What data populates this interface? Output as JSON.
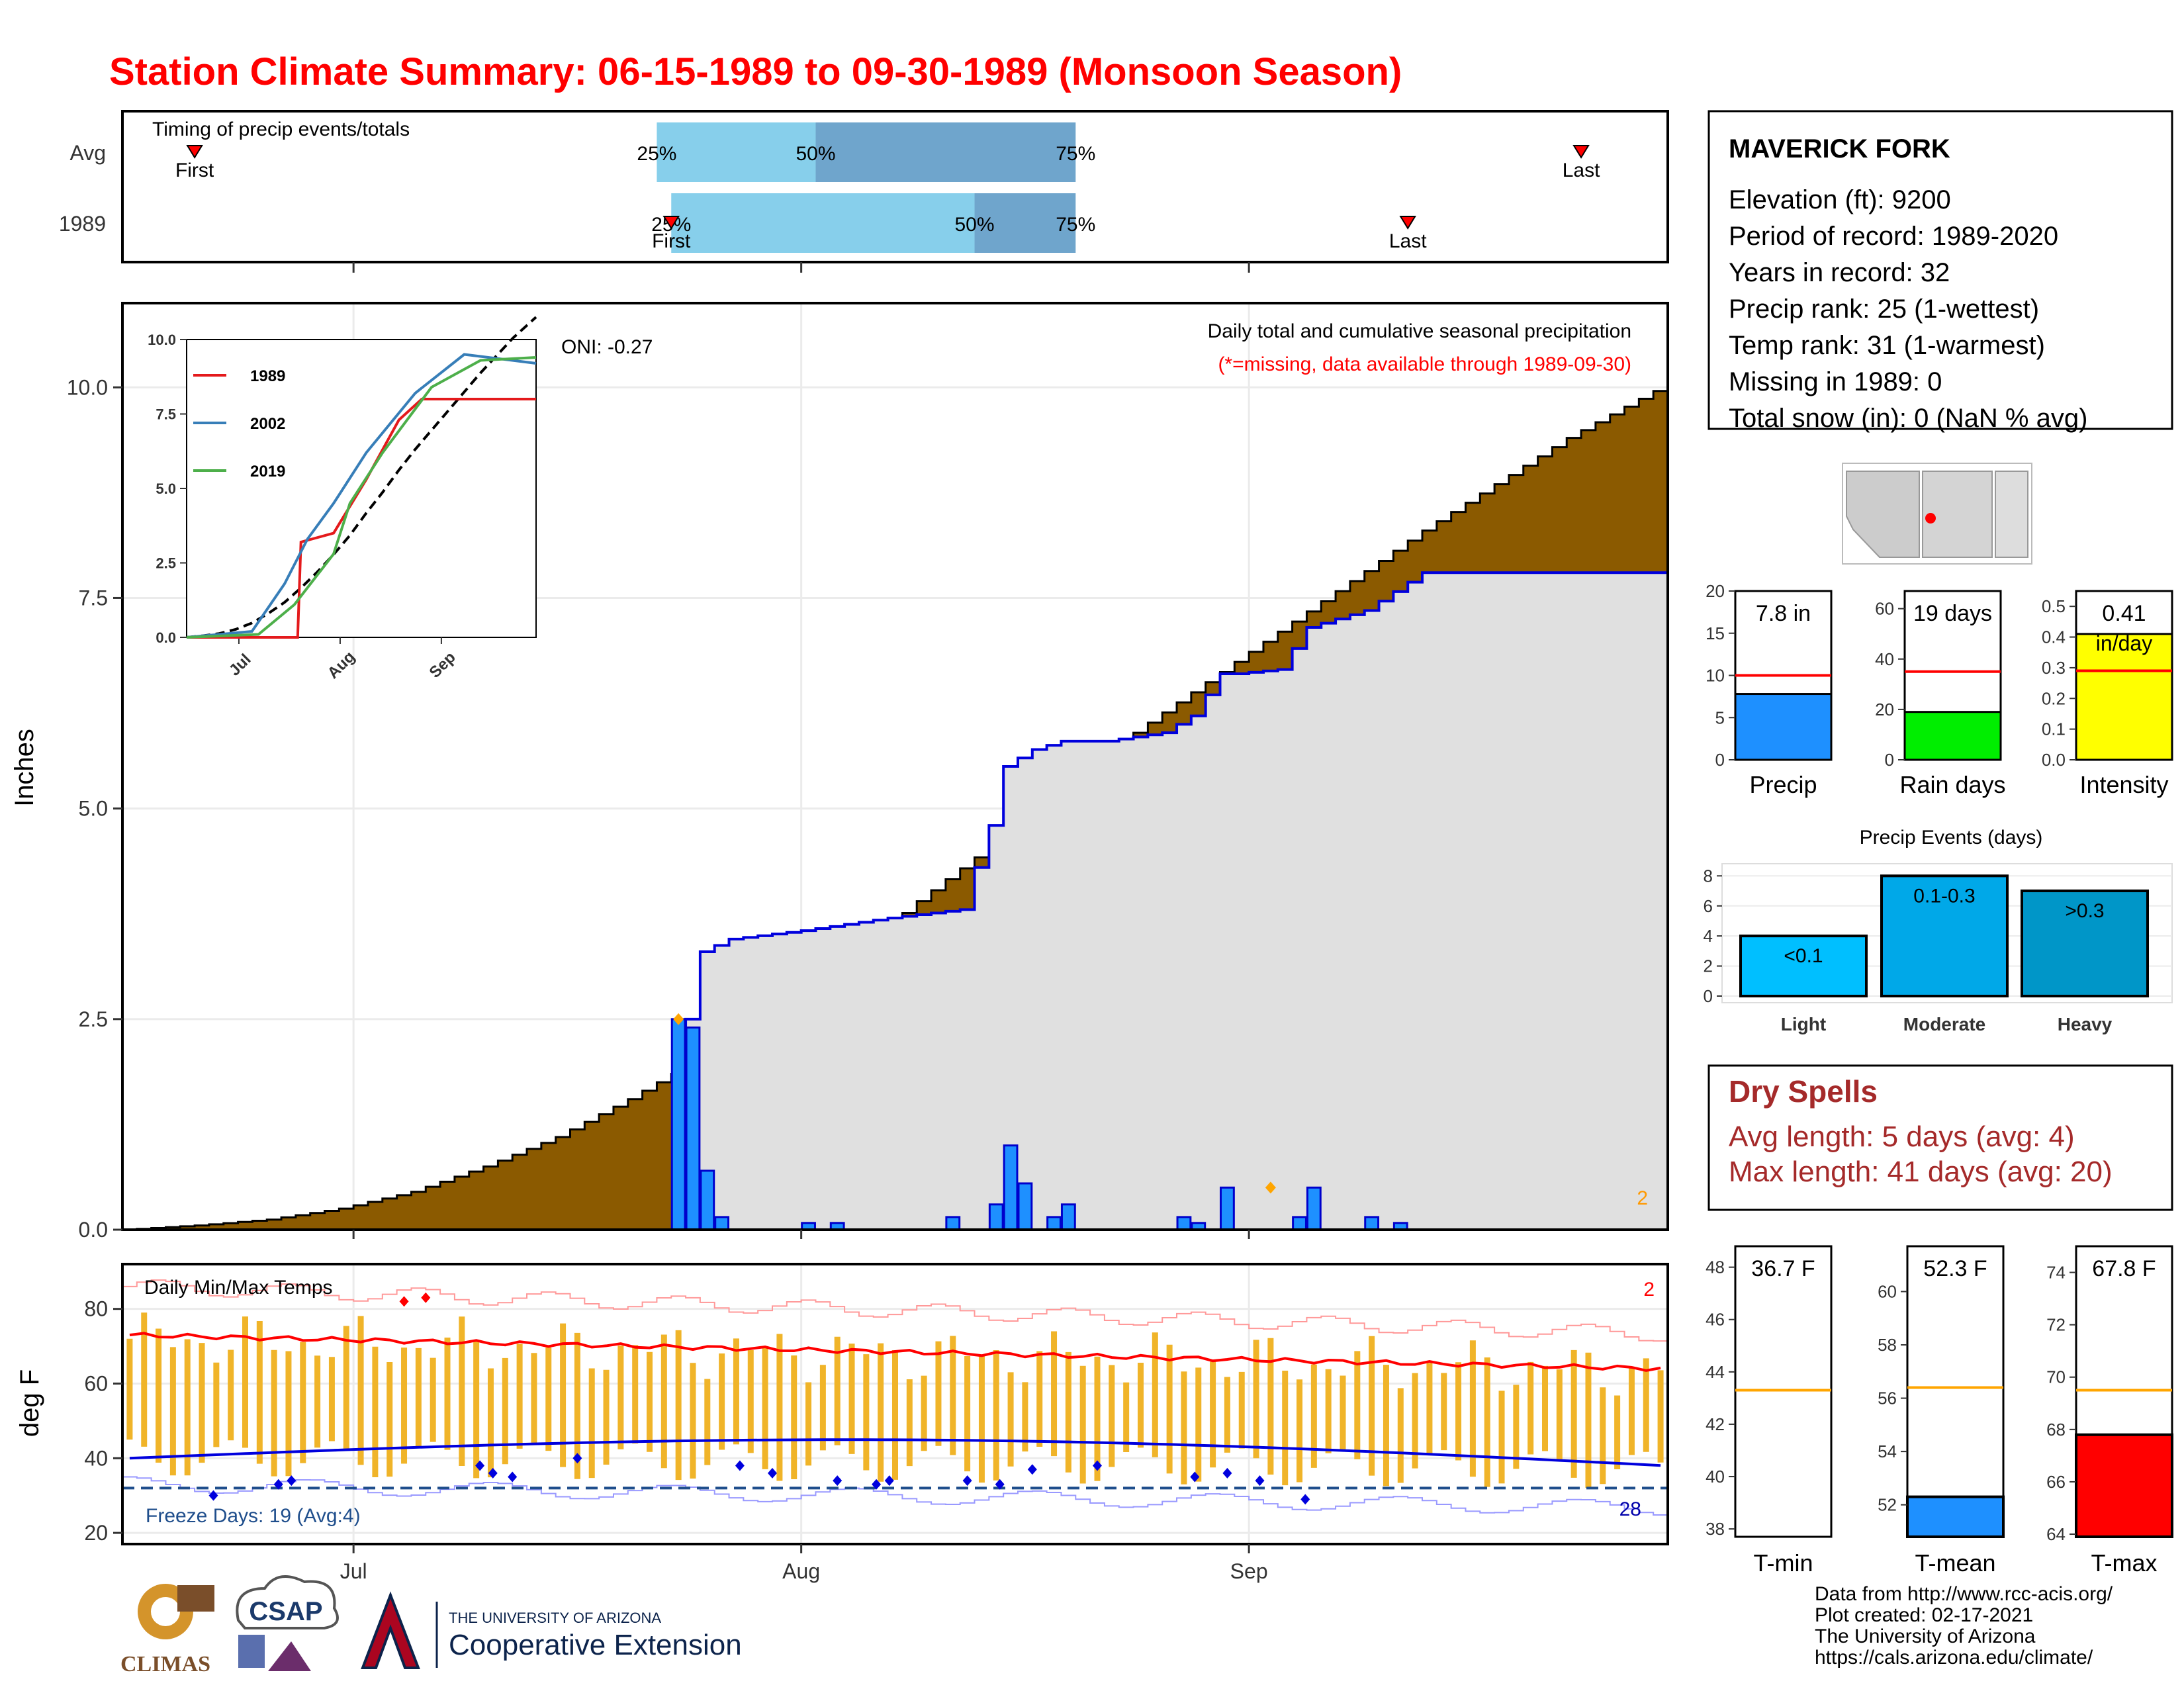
{
  "title": "Station Climate Summary: 06-15-1989 to 09-30-1989 (Monsoon Season)",
  "colors": {
    "title": "#ff0000",
    "cumulative_avg_fill": "#8b5a00",
    "cumulative_obs_line": "#0000dd",
    "daily_bars": "#1e90ff",
    "temp_range_bars": "#f0b429",
    "avg_max_line": "#ff0000",
    "avg_min_line": "#0000dd",
    "timing_light": "#87cfeb",
    "timing_dark": "#6fa5cc"
  },
  "timing": {
    "title": "Timing of precip events/totals",
    "rows": [
      {
        "label": "Avg",
        "first": "1989-06-20",
        "p25": "1989-07-22",
        "p50": "1989-08-02",
        "p75": "1989-08-20",
        "last": "1989-09-24",
        "first_label": "First",
        "last_label": "Last",
        "p25_label": "25%",
        "p50_label": "50%",
        "p75_label": "75%"
      },
      {
        "label": "1989",
        "first": "1989-07-23",
        "p25": "1989-07-23",
        "p50": "1989-08-13",
        "p75": "1989-08-20",
        "last": "1989-09-12",
        "first_label": "First",
        "last_label": "Last",
        "p25_label": "25%",
        "p50_label": "50%",
        "p75_label": "75%"
      }
    ]
  },
  "main": {
    "ylabel": "Inches",
    "oni": "ONI: -0.27",
    "desc1": "Daily total and cumulative seasonal precipitation",
    "desc2": "(*=missing, data available through 1989-09-30)",
    "corner_count": "2",
    "y_ticks": [
      "0.0",
      "2.5",
      "5.0",
      "7.5",
      "10.0"
    ],
    "x_ticks": [
      "Jul",
      "Aug",
      "Sep"
    ]
  },
  "chart_data": {
    "type": "area",
    "x_start": "1989-06-15",
    "x_end": "1989-09-30",
    "ylim": [
      0,
      11
    ],
    "series": [
      {
        "name": "avg_cumulative",
        "x": [
          0,
          5,
          10,
          15,
          20,
          25,
          30,
          35,
          40,
          45,
          50,
          55,
          60,
          65,
          70,
          75,
          80,
          85,
          90,
          95,
          100,
          107
        ],
        "values": [
          0,
          0.05,
          0.12,
          0.25,
          0.45,
          0.75,
          1.1,
          1.55,
          2.05,
          2.6,
          3.2,
          3.9,
          4.55,
          5.25,
          5.9,
          6.5,
          7.1,
          7.7,
          8.3,
          8.85,
          9.4,
          10.05
        ]
      },
      {
        "name": "1989_cumulative",
        "x": [
          0,
          38,
          39,
          40,
          42,
          47,
          53,
          58,
          60,
          61,
          63,
          65,
          68,
          72,
          74,
          76,
          77,
          80,
          82,
          84,
          86,
          90,
          93,
          94,
          95,
          107
        ],
        "values": [
          0,
          0,
          2.5,
          3.3,
          3.45,
          3.55,
          3.7,
          3.8,
          4.8,
          5.5,
          5.7,
          5.8,
          5.8,
          5.9,
          6.1,
          6.6,
          6.6,
          6.65,
          7.15,
          7.25,
          7.35,
          7.8,
          7.8,
          7.8,
          7.8,
          7.8
        ]
      },
      {
        "name": "daily_precip",
        "x": [
          38,
          39,
          40,
          41,
          47,
          49,
          57,
          60,
          61,
          62,
          64,
          65,
          73,
          74,
          76,
          81,
          82,
          86,
          88
        ],
        "values": [
          2.5,
          2.4,
          0.7,
          0.15,
          0.08,
          0.08,
          0.15,
          0.3,
          1.0,
          0.55,
          0.15,
          0.3,
          0.15,
          0.08,
          0.5,
          0.15,
          0.5,
          0.15,
          0.08
        ]
      }
    ]
  },
  "inset": {
    "legend": [
      "1989",
      "2002",
      "2019"
    ],
    "y_ticks": [
      "0.0",
      "2.5",
      "5.0",
      "7.5",
      "10.0"
    ],
    "x_ticks": [
      "Jul",
      "Aug",
      "Sep"
    ],
    "colors": {
      "1989": "#e41a1c",
      "2002": "#377eb8",
      "2019": "#4daf4a"
    }
  },
  "temps": {
    "title": "Daily Min/Max Temps",
    "ylabel": "deg F",
    "freeze_days": "Freeze Days: 19 (Avg:4)",
    "count_top": "2",
    "count_bottom": "28",
    "y_ticks": [
      "20",
      "40",
      "60",
      "80"
    ],
    "x_ticks": [
      "Jul",
      "Aug",
      "Sep"
    ],
    "ylim": [
      17,
      92
    ]
  },
  "station": {
    "name": "MAVERICK FORK",
    "lines": [
      "Elevation (ft): 9200",
      "Period of record: 1989-2020",
      "Years in record: 32",
      "Precip rank: 25 (1-wettest)",
      "Temp rank: 31 (1-warmest)",
      "Missing in 1989: 0",
      "Total snow (in): 0 (NaN % avg)"
    ]
  },
  "precip_boxes": [
    {
      "label": "Precip",
      "value_label": "7.8 in",
      "value": 7.8,
      "avg": 10,
      "ymax": 20,
      "ticks": [
        "0",
        "5",
        "10",
        "15",
        "20"
      ],
      "color": "#1e90ff"
    },
    {
      "label": "Rain days",
      "value_label": "19 days",
      "value": 19,
      "avg": 35,
      "ymax": 67,
      "ticks": [
        "0",
        "20",
        "40",
        "60"
      ],
      "color": "#00ee00"
    },
    {
      "label": "Intensity",
      "value_label": "0.41",
      "value_sub": "in/day",
      "value": 0.41,
      "avg": 0.29,
      "ymax": 0.55,
      "ticks": [
        "0.0",
        "0.1",
        "0.2",
        "0.3",
        "0.4",
        "0.5"
      ],
      "color": "#ffff00"
    }
  ],
  "events": {
    "title": "Precip Events (days)",
    "categories": [
      "Light",
      "Moderate",
      "Heavy"
    ],
    "labels": [
      "<0.1",
      "0.1-0.3",
      ">0.3"
    ],
    "values": [
      4,
      8,
      7
    ],
    "colors": [
      "#00bfff",
      "#00a8e8",
      "#0096c8"
    ],
    "ticks": [
      "0",
      "2",
      "4",
      "6",
      "8"
    ]
  },
  "dry_spells": {
    "title": "Dry Spells",
    "avg": "Avg length: 5 days (avg: 4)",
    "max": "Max length: 41 days (avg: 20)"
  },
  "temp_boxes": [
    {
      "label": "T-min",
      "value_label": "36.7 F",
      "value": 36.7,
      "avg": 43.3,
      "ymin": 37.7,
      "ymax": 48.8,
      "ticks": [
        "38",
        "40",
        "42",
        "44",
        "46",
        "48"
      ],
      "color": "#ffffff"
    },
    {
      "label": "T-mean",
      "value_label": "52.3 F",
      "value": 52.3,
      "avg": 56.4,
      "ymin": 50.8,
      "ymax": 61.7,
      "ticks": [
        "52",
        "54",
        "56",
        "58",
        "60"
      ],
      "color": "#1e90ff"
    },
    {
      "label": "T-max",
      "value_label": "67.8 F",
      "value": 67.8,
      "avg": 69.5,
      "ymin": 63.9,
      "ymax": 75.0,
      "ticks": [
        "64",
        "66",
        "68",
        "70",
        "72",
        "74"
      ],
      "color": "#ff0000"
    }
  ],
  "footer": {
    "logos": [
      "CLIMAS",
      "CSAP",
      "THE UNIVERSITY OF ARIZONA",
      "Cooperative Extension"
    ],
    "credits": [
      "Data from http://www.rcc-acis.org/",
      "Plot created: 02-17-2021",
      "The University of Arizona",
      "https://cals.arizona.edu/climate/"
    ]
  }
}
